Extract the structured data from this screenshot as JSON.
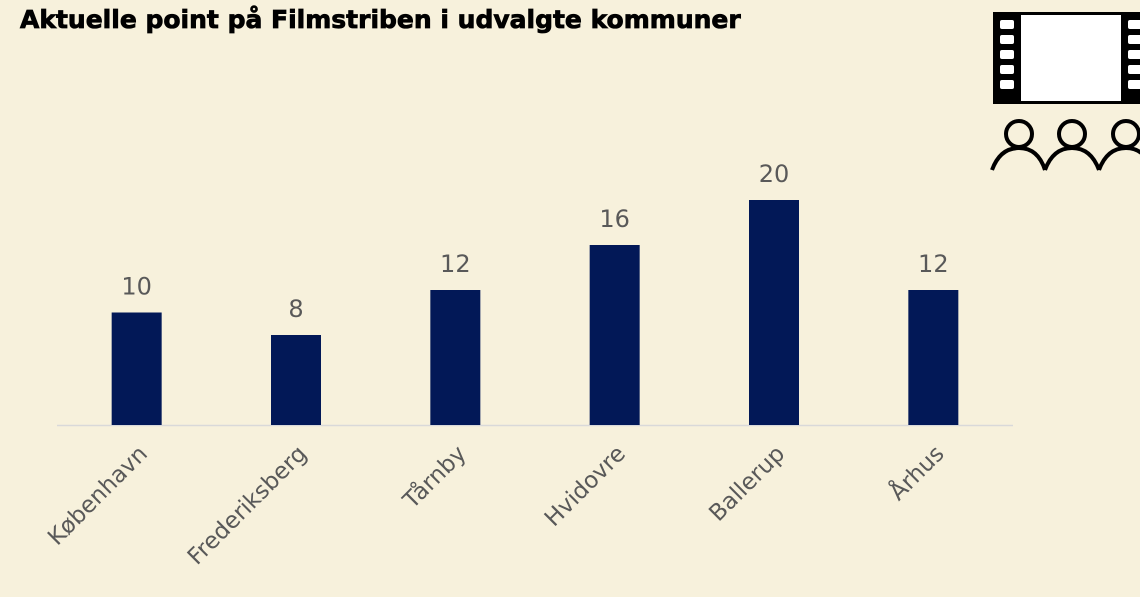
{
  "chart_data": {
    "type": "bar",
    "title": "Aktuelle point på Filmstriben i udvalgte kommuner",
    "categories": [
      "København",
      "Frederiksberg",
      "Tårnby",
      "Hvidovre",
      "Ballerup",
      "Århus"
    ],
    "values": [
      10,
      8,
      12,
      16,
      20,
      12
    ],
    "color": "#021857"
  }
}
